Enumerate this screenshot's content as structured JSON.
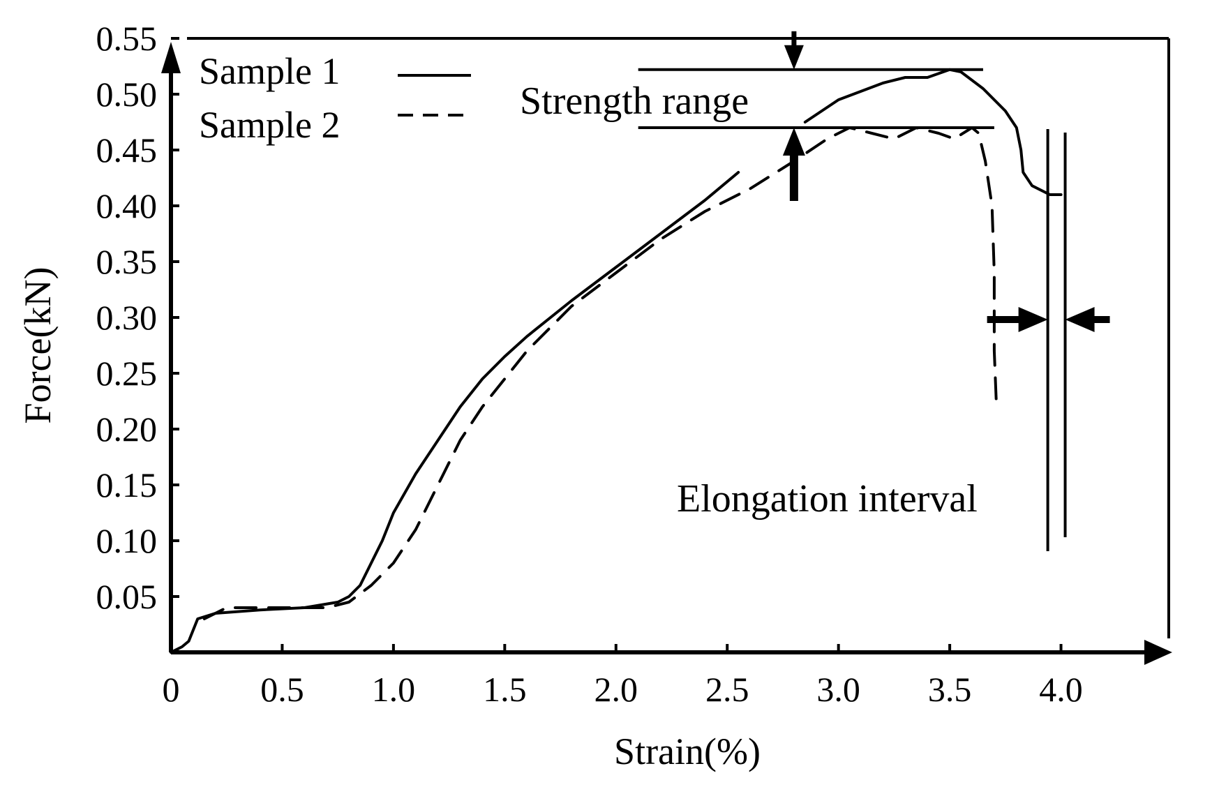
{
  "chart_data": {
    "type": "line",
    "xlabel": "Strain(%)",
    "ylabel": "Force(kN)",
    "xlim": [
      0,
      4.5
    ],
    "ylim": [
      0,
      0.55
    ],
    "x_ticks": [
      "0",
      "0.5",
      "1.0",
      "1.5",
      "2.0",
      "2.5",
      "3.0",
      "3.5",
      "4.0"
    ],
    "y_ticks": [
      "0.05",
      "0.10",
      "0.15",
      "0.20",
      "0.25",
      "0.30",
      "0.35",
      "0.40",
      "0.45",
      "0.50",
      "0.55"
    ],
    "legend_position": "top-left",
    "series": [
      {
        "name": "Sample 1",
        "style": "solid",
        "color": "#000000",
        "points": [
          [
            0.0,
            0.0
          ],
          [
            0.05,
            0.005
          ],
          [
            0.08,
            0.01
          ],
          [
            0.1,
            0.02
          ],
          [
            0.12,
            0.03
          ],
          [
            0.2,
            0.035
          ],
          [
            0.4,
            0.038
          ],
          [
            0.6,
            0.04
          ],
          [
            0.75,
            0.045
          ],
          [
            0.8,
            0.05
          ],
          [
            0.85,
            0.06
          ],
          [
            0.9,
            0.08
          ],
          [
            0.95,
            0.1
          ],
          [
            1.0,
            0.125
          ],
          [
            1.1,
            0.16
          ],
          [
            1.2,
            0.19
          ],
          [
            1.3,
            0.22
          ],
          [
            1.4,
            0.245
          ],
          [
            1.5,
            0.265
          ],
          [
            1.6,
            0.283
          ],
          [
            1.8,
            0.315
          ],
          [
            2.0,
            0.345
          ],
          [
            2.2,
            0.375
          ],
          [
            2.4,
            0.405
          ],
          [
            2.55,
            0.43
          ]
        ]
      },
      {
        "name": "Sample 1",
        "style": "solid",
        "color": "#000000",
        "points": [
          [
            2.85,
            0.475
          ],
          [
            3.0,
            0.495
          ],
          [
            3.2,
            0.51
          ],
          [
            3.3,
            0.515
          ],
          [
            3.4,
            0.515
          ],
          [
            3.5,
            0.522
          ],
          [
            3.55,
            0.52
          ],
          [
            3.65,
            0.505
          ],
          [
            3.75,
            0.485
          ],
          [
            3.8,
            0.47
          ],
          [
            3.82,
            0.45
          ],
          [
            3.83,
            0.43
          ],
          [
            3.87,
            0.418
          ],
          [
            3.95,
            0.41
          ],
          [
            4.0,
            0.41
          ]
        ]
      },
      {
        "name": "Sample 2",
        "style": "dashed",
        "color": "#000000",
        "points": [
          [
            0.15,
            0.03
          ],
          [
            0.25,
            0.04
          ],
          [
            0.5,
            0.04
          ],
          [
            0.7,
            0.04
          ],
          [
            0.8,
            0.045
          ],
          [
            0.9,
            0.06
          ],
          [
            1.0,
            0.08
          ],
          [
            1.1,
            0.11
          ],
          [
            1.2,
            0.15
          ],
          [
            1.3,
            0.19
          ],
          [
            1.4,
            0.22
          ],
          [
            1.6,
            0.27
          ],
          [
            1.8,
            0.31
          ],
          [
            2.0,
            0.34
          ],
          [
            2.2,
            0.37
          ],
          [
            2.4,
            0.395
          ],
          [
            2.6,
            0.415
          ],
          [
            2.8,
            0.44
          ],
          [
            2.95,
            0.46
          ],
          [
            3.05,
            0.47
          ],
          [
            3.15,
            0.465
          ],
          [
            3.25,
            0.46
          ],
          [
            3.35,
            0.47
          ],
          [
            3.45,
            0.465
          ],
          [
            3.52,
            0.46
          ],
          [
            3.6,
            0.47
          ],
          [
            3.63,
            0.465
          ],
          [
            3.66,
            0.44
          ],
          [
            3.69,
            0.4
          ],
          [
            3.7,
            0.34
          ],
          [
            3.7,
            0.27
          ],
          [
            3.71,
            0.22
          ]
        ]
      }
    ],
    "annotations": [
      {
        "text": "Strength range",
        "y_upper": 0.522,
        "y_lower": 0.47,
        "x_from": 2.1,
        "x_to_upper": 3.65,
        "x_to_lower": 3.7,
        "arrow_x": 2.8
      },
      {
        "text": "Elongation interval",
        "x_left": 3.95,
        "x_right": 4.0,
        "arrow_y": 0.3
      }
    ]
  }
}
